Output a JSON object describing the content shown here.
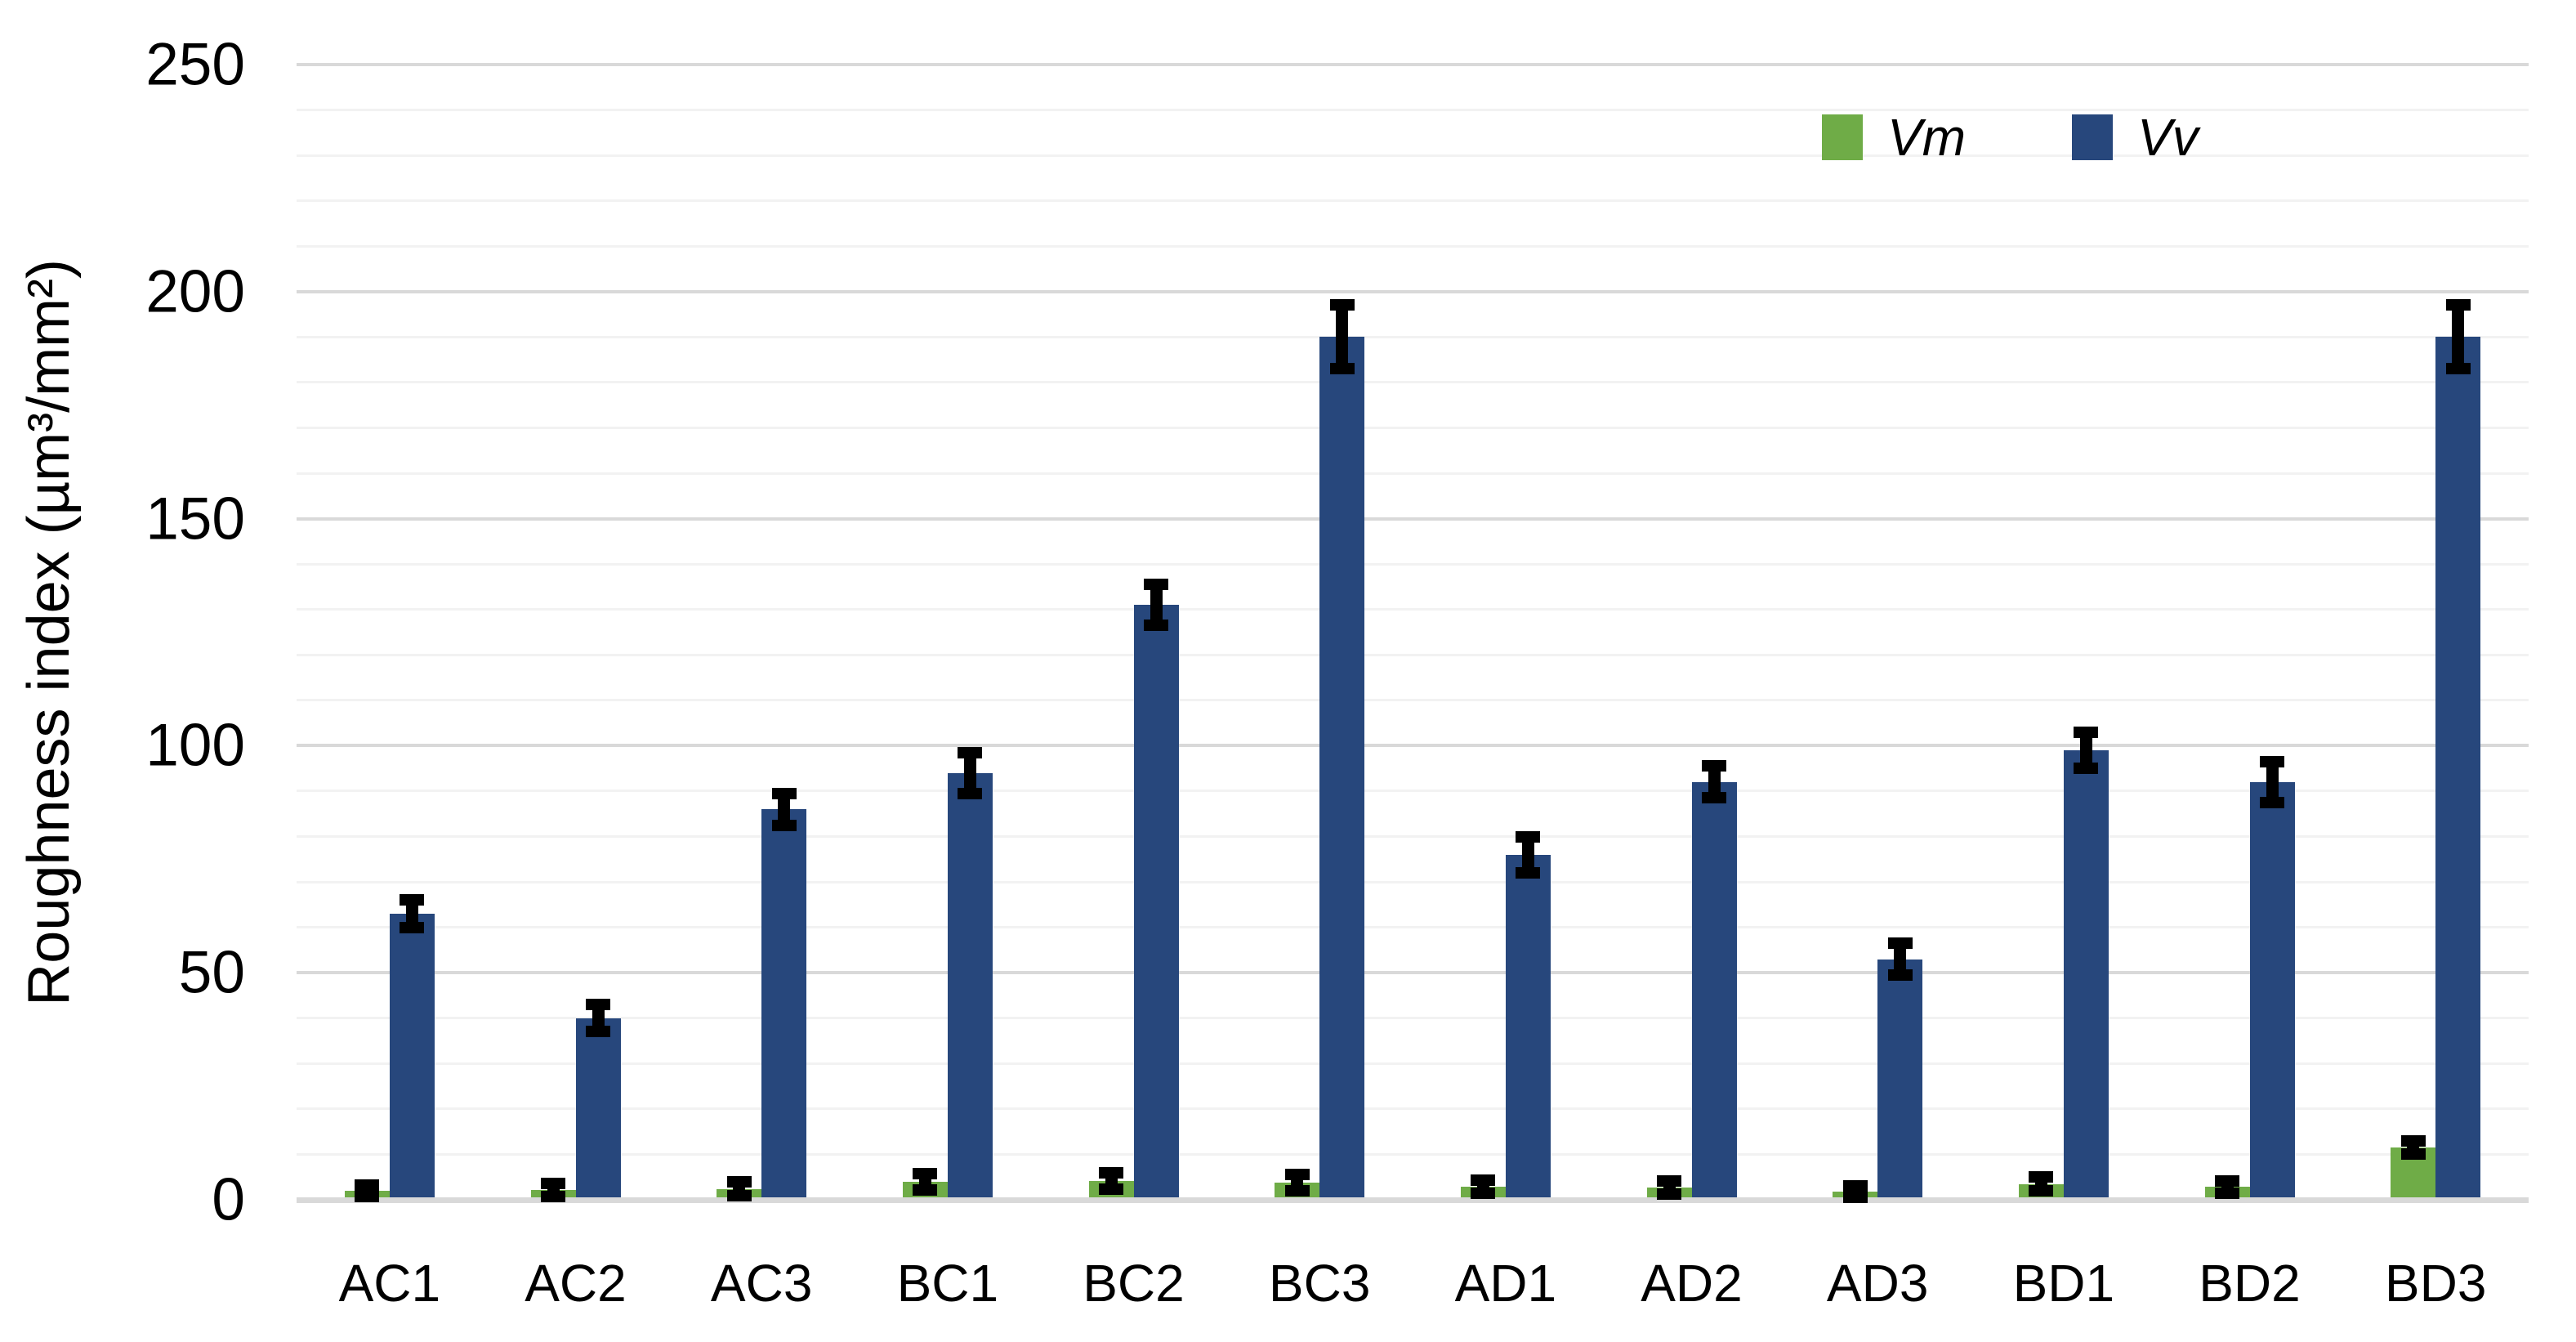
{
  "chart_data": {
    "type": "bar",
    "title": "",
    "categories": [
      "AC1",
      "AC2",
      "AC3",
      "BC1",
      "BC2",
      "BC3",
      "AD1",
      "AD2",
      "AD3",
      "BD1",
      "BD2",
      "BD3"
    ],
    "series": [
      {
        "name": "Vm",
        "color": "#6FAC47",
        "values": [
          2.0,
          2.2,
          2.4,
          4.0,
          4.2,
          3.8,
          2.9,
          2.7,
          1.8,
          3.5,
          2.8,
          11.5
        ],
        "errors": [
          1.3,
          1.4,
          1.5,
          1.8,
          1.8,
          1.8,
          1.5,
          1.5,
          1.3,
          1.6,
          1.4,
          1.5
        ]
      },
      {
        "name": "Vv",
        "color": "#27477C",
        "values": [
          63,
          40,
          86,
          94,
          131,
          190,
          76,
          92,
          53,
          99,
          92,
          190
        ],
        "errors": [
          3,
          3,
          3.5,
          4.5,
          4.5,
          7,
          4,
          3.5,
          3.5,
          4,
          4.5,
          7
        ]
      }
    ],
    "xlabel": "",
    "ylabel": "Roughness index (µm³/mm²)",
    "ylim": [
      0,
      250
    ],
    "y_major_ticks": [
      "0",
      "50",
      "100",
      "150",
      "200",
      "250"
    ],
    "y_major_step": 50,
    "y_minor_step": 10,
    "grid": {
      "minor_color": "#F2F2F2",
      "major_color": "#D9D9D9",
      "baseline_color": "#D9D9D9",
      "minor_on": true,
      "major_on": true
    },
    "error_bar_color": "#000000",
    "legend_position": "top-right",
    "legend_entries": [
      "Vm",
      "Vv"
    ]
  },
  "legend": {
    "items": [
      {
        "label": "Vm",
        "color": "#6FAC47"
      },
      {
        "label": "Vv",
        "color": "#27477C"
      }
    ]
  },
  "axes": {
    "y_title": "Roughness index (µm³/mm²)"
  }
}
